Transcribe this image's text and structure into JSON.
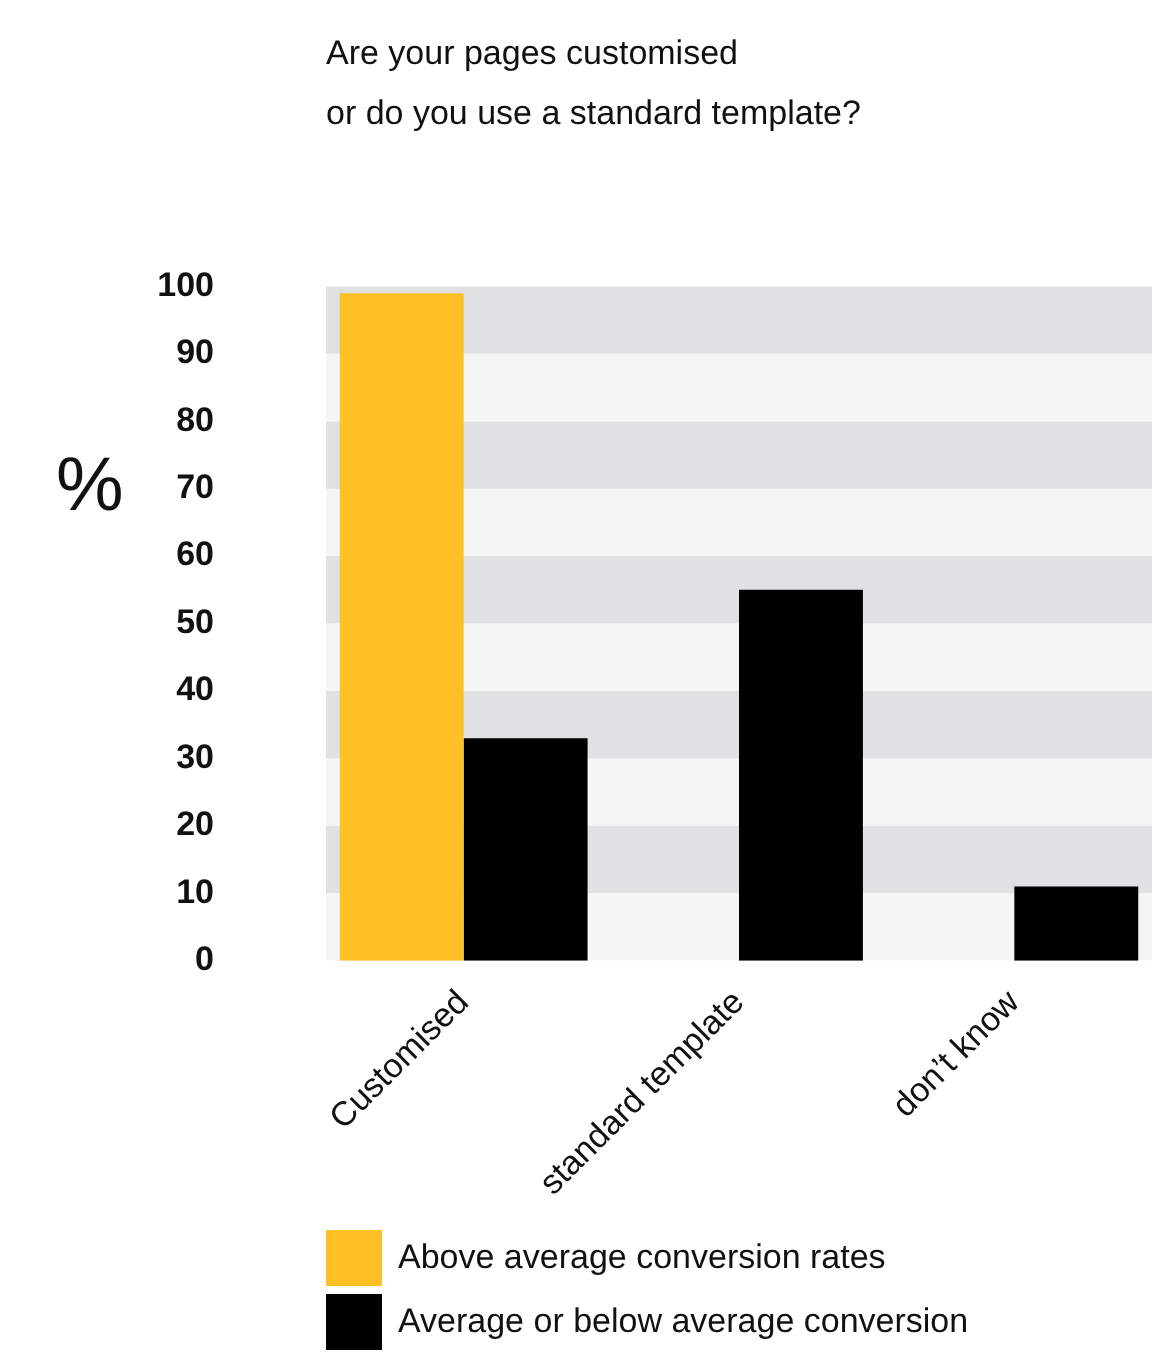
{
  "chart_data": {
    "type": "bar",
    "title": "Are your pages customised\nor do you use a standard template?",
    "ylabel": "%",
    "categories": [
      "Customised",
      "standard template",
      "don’t know"
    ],
    "series": [
      {
        "name": "Above average conversion rates",
        "color": "#fdc125",
        "values": [
          99,
          0,
          0
        ]
      },
      {
        "name": "Average or below average conversion",
        "color": "#000000",
        "values": [
          33,
          55,
          11
        ]
      }
    ],
    "ylim": [
      0,
      100
    ],
    "yticks": [
      0,
      10,
      20,
      30,
      40,
      50,
      60,
      70,
      80,
      90,
      100
    ],
    "legend": "bottom"
  }
}
